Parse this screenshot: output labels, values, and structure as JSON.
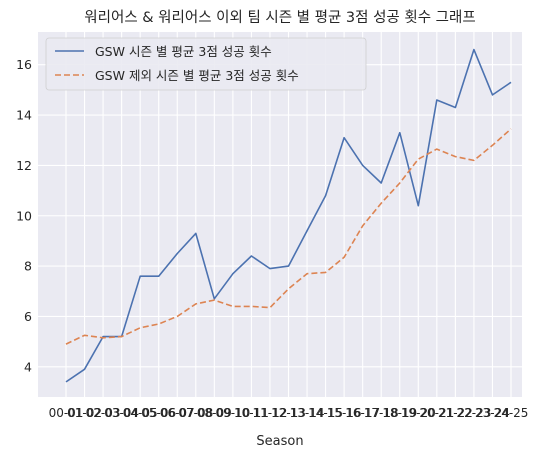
{
  "chart_data": {
    "type": "line",
    "title": "워리어스 & 워리어스 이외 팀 시즌 별 평균 3점 성공 횟수 그래프",
    "xlabel": "Season",
    "ylabel": "",
    "categories": [
      "00-01",
      "01-02",
      "02-03",
      "03-04",
      "04-05",
      "05-06",
      "06-07",
      "07-08",
      "08-09",
      "09-10",
      "10-11",
      "11-12",
      "12-13",
      "13-14",
      "14-15",
      "15-16",
      "16-17",
      "17-18",
      "18-19",
      "19-20",
      "20-21",
      "21-22",
      "22-23",
      "23-24",
      "24-25"
    ],
    "series": [
      {
        "name": "GSW 시즌 별 평균 3점 성공 횟수",
        "style": "solid",
        "color": "#4c72b0",
        "values": [
          3.4,
          3.9,
          5.2,
          5.2,
          7.6,
          7.6,
          8.5,
          9.3,
          6.7,
          7.7,
          8.4,
          7.9,
          8.0,
          9.4,
          10.8,
          13.1,
          12.0,
          11.3,
          13.3,
          10.4,
          14.6,
          14.3,
          16.6,
          14.8,
          15.3
        ]
      },
      {
        "name": "GSW 제외 시즌 별 평균 3점 성공 횟수",
        "style": "dashed",
        "color": "#dd8452",
        "values": [
          4.9,
          5.25,
          5.15,
          5.2,
          5.55,
          5.7,
          6.0,
          6.5,
          6.65,
          6.4,
          6.4,
          6.35,
          7.1,
          7.7,
          7.75,
          8.35,
          9.6,
          10.5,
          11.3,
          12.25,
          12.65,
          12.35,
          12.2,
          12.8,
          13.45
        ]
      }
    ],
    "ylim": [
      2.8,
      17.3
    ],
    "yticks": [
      4,
      6,
      8,
      10,
      12,
      14,
      16
    ],
    "grid": true,
    "legend": "top-left"
  }
}
